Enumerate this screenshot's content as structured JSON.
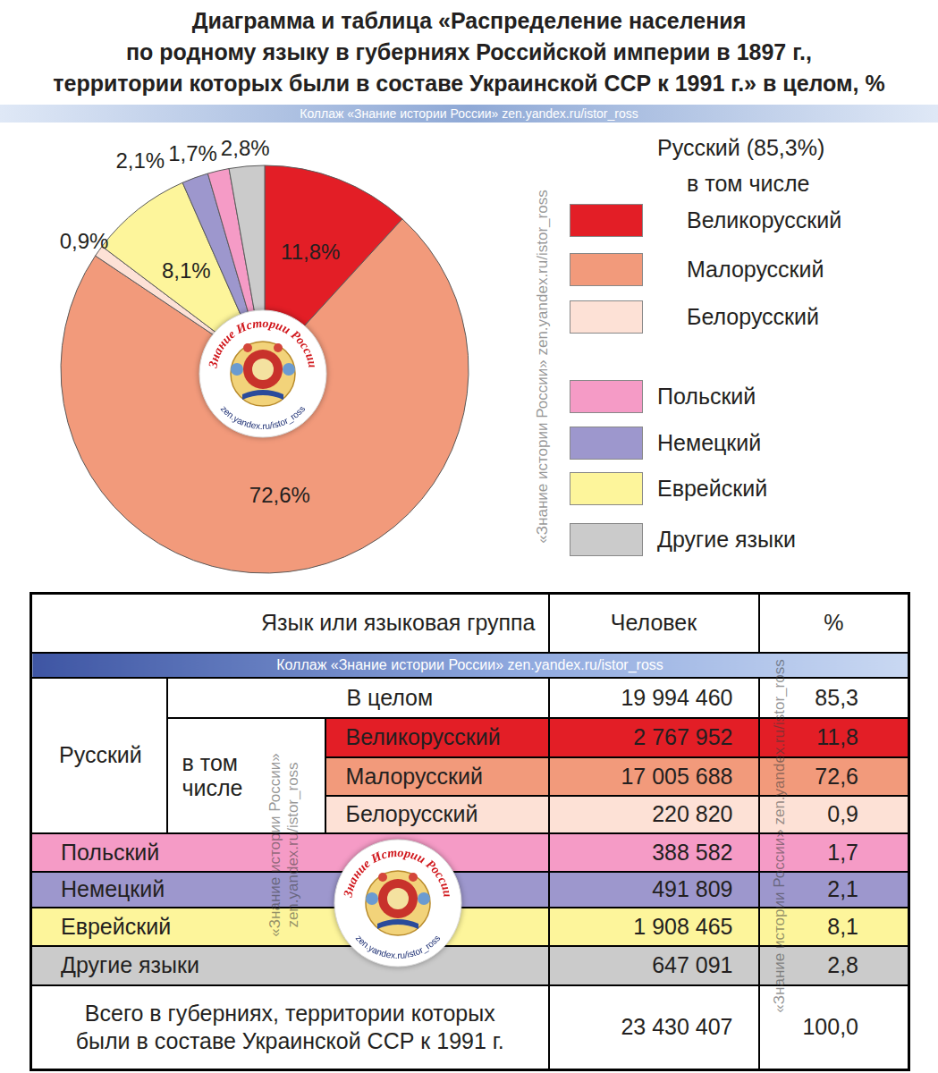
{
  "chart_data": {
    "type": "pie",
    "title": [
      "Диаграмма и таблица «Распределение населения",
      "по родному языку в губерниях Российской империи в 1897 г.,",
      "территории которых были в составе Украинской ССР к 1991 г.» в целом, %"
    ],
    "categories": [
      "Великорусский",
      "Малорусский",
      "Белорусский",
      "Еврейский",
      "Немецкий",
      "Польский",
      "Другие языки"
    ],
    "values": [
      11.8,
      72.6,
      0.9,
      8.1,
      2.1,
      1.7,
      2.8
    ],
    "value_labels": [
      "11,8%",
      "72,6%",
      "0,9%",
      "8,1%",
      "2,1%",
      "1,7%",
      "2,8%"
    ],
    "colors": [
      "#e31e26",
      "#f29a7b",
      "#fde1d6",
      "#fdf59b",
      "#9d97cd",
      "#f59bc6",
      "#cbcbcb"
    ],
    "data_labels": true
  },
  "banner": "Коллаж «Знание истории России» zen.yandex.ru/istor_ross",
  "watermark": [
    "«Знание истории России»",
    "zen.yandex.ru/istor_ross"
  ],
  "logo": {
    "title": "Знание Истории России",
    "url": "zen.yandex.ru/istor_ross"
  },
  "legend_panel": {
    "heading": "Русский (85,3%)",
    "subheading": "в том числе",
    "groups": [
      [
        {
          "name": "Великорусский",
          "color": "#e31e26"
        },
        {
          "name": "Малорусский",
          "color": "#f29a7b"
        },
        {
          "name": "Белорусский",
          "color": "#fde1d6"
        }
      ],
      [
        {
          "name": "Польский",
          "color": "#f59bc6"
        },
        {
          "name": "Немецкий",
          "color": "#9d97cd"
        },
        {
          "name": "Еврейский",
          "color": "#fdf59b"
        },
        {
          "name": "Другие языки",
          "color": "#cbcbcb"
        }
      ]
    ]
  },
  "table": {
    "header": [
      "Язык или языковая группа",
      "Человек",
      "%"
    ],
    "group": {
      "name": "Русский",
      "total": {
        "label": "В целом",
        "people": "19 994 460",
        "percent": "85,3"
      },
      "sub_caption": [
        "в том",
        "числе"
      ],
      "rows": [
        {
          "label": "Великорусский",
          "people": "2 767 952",
          "percent": "11,8",
          "color": "#e31e26"
        },
        {
          "label": "Малорусский",
          "people": "17 005 688",
          "percent": "72,6",
          "color": "#f29a7b"
        },
        {
          "label": "Белорусский",
          "people": "220 820",
          "percent": "0,9",
          "color": "#fde1d6"
        }
      ]
    },
    "rows": [
      {
        "label": "Польский",
        "people": "388 582",
        "percent": "1,7",
        "color": "#f59bc6"
      },
      {
        "label": "Немецкий",
        "people": "491 809",
        "percent": "2,1",
        "color": "#9d97cd"
      },
      {
        "label": "Еврейский",
        "people": "1 908 465",
        "percent": "8,1",
        "color": "#fdf59b"
      },
      {
        "label": "Другие языки",
        "people": "647 091",
        "percent": "2,8",
        "color": "#cbcbcb"
      }
    ],
    "total": {
      "label": [
        "Всего в губерниях, территории которых",
        "были в составе Украинской ССР к 1991 г."
      ],
      "people": "23 430 407",
      "percent": "100,0"
    }
  }
}
